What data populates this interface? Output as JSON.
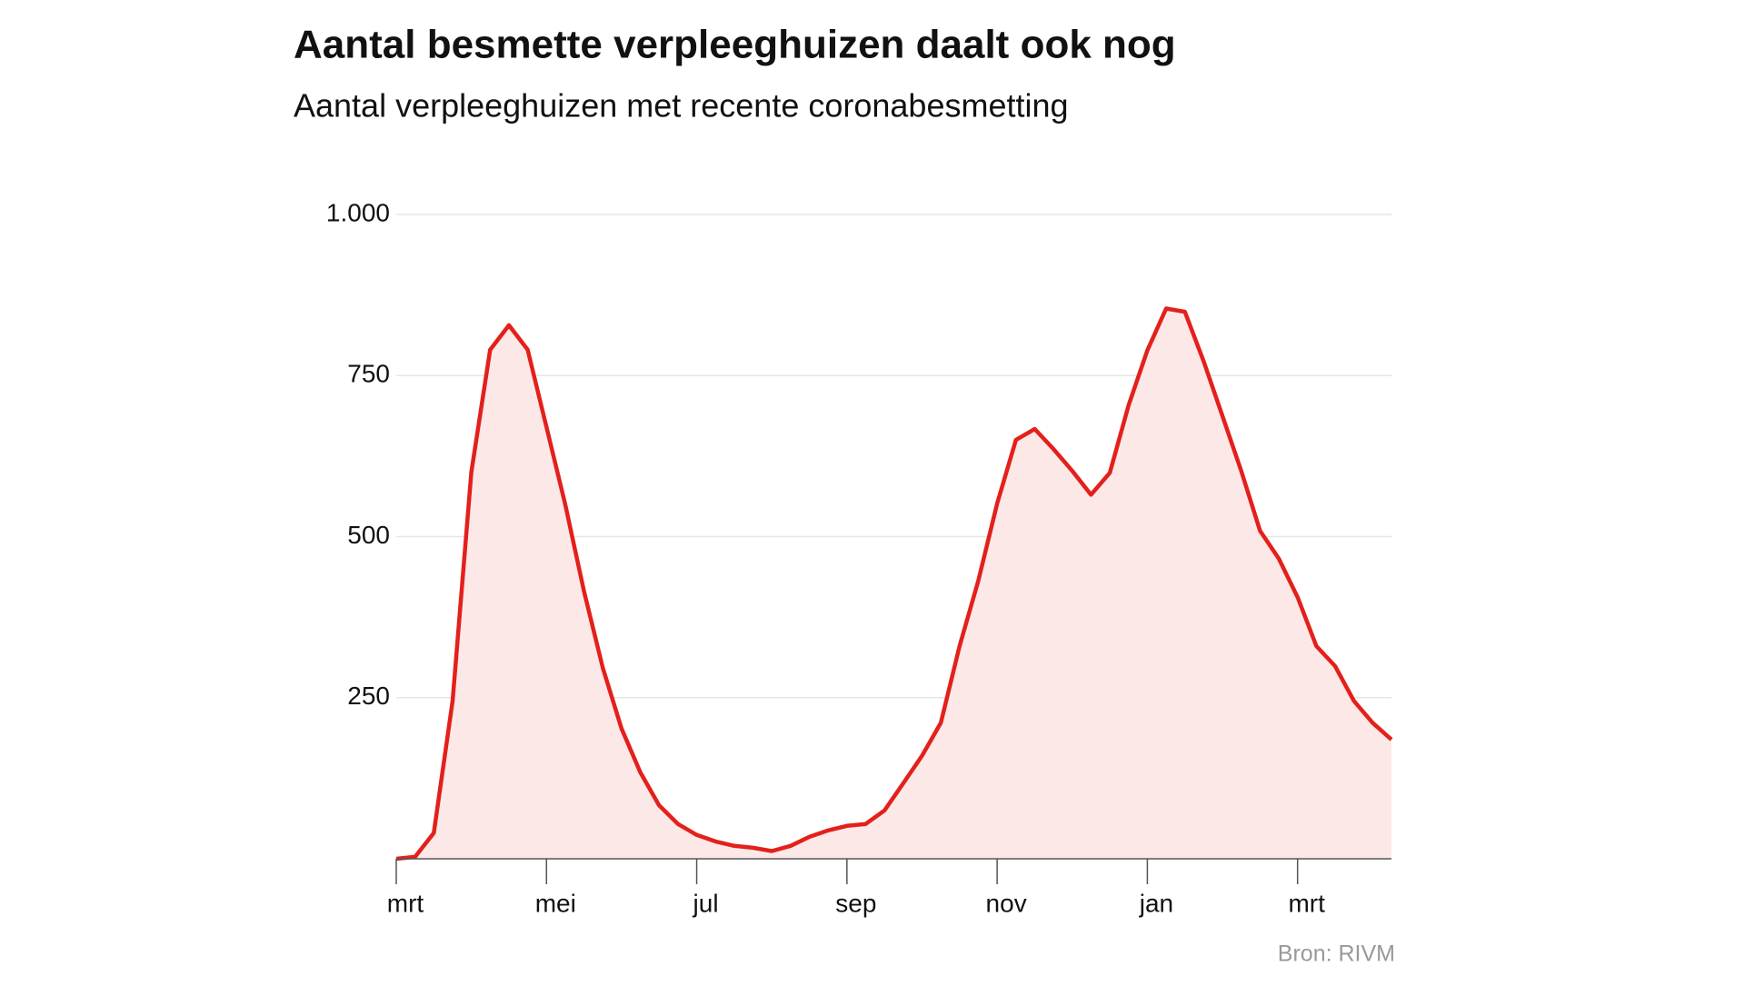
{
  "chart_data": {
    "type": "area",
    "title": "Aantal besmette verpleeghuizen daalt ook nog",
    "subtitle": "Aantal verpleeghuizen met recente coronabesmetting",
    "source": "Bron: RIVM",
    "categories": [
      "mrt",
      null,
      null,
      null,
      null,
      null,
      null,
      null,
      "mei",
      null,
      null,
      null,
      null,
      null,
      null,
      null,
      "jul",
      null,
      null,
      null,
      null,
      null,
      null,
      null,
      "sep",
      null,
      null,
      null,
      null,
      null,
      null,
      null,
      "nov",
      null,
      null,
      null,
      null,
      null,
      null,
      null,
      "jan",
      null,
      null,
      null,
      null,
      null,
      null,
      null,
      "mrt",
      null,
      null,
      null,
      null,
      null
    ],
    "series": [
      {
        "name": "Verpleeghuizen",
        "color": "#e3201b",
        "fill": "#fde8e8",
        "values": [
          0,
          3,
          40,
          245,
          600,
          790,
          828,
          790,
          670,
          550,
          415,
          296,
          202,
          134,
          83,
          54,
          37,
          27,
          20,
          17,
          12,
          20,
          34,
          44,
          51,
          54,
          75,
          117,
          160,
          211,
          330,
          432,
          551,
          650,
          667,
          636,
          602,
          565,
          599,
          704,
          789,
          854,
          849,
          772,
          687,
          602,
          509,
          466,
          406,
          330,
          299,
          245,
          211,
          185
        ]
      }
    ],
    "ylim": [
      0,
      1000
    ],
    "yticks": [
      250,
      500,
      750,
      {
        "value": 1000,
        "label": "1.000"
      }
    ],
    "grid": true
  }
}
